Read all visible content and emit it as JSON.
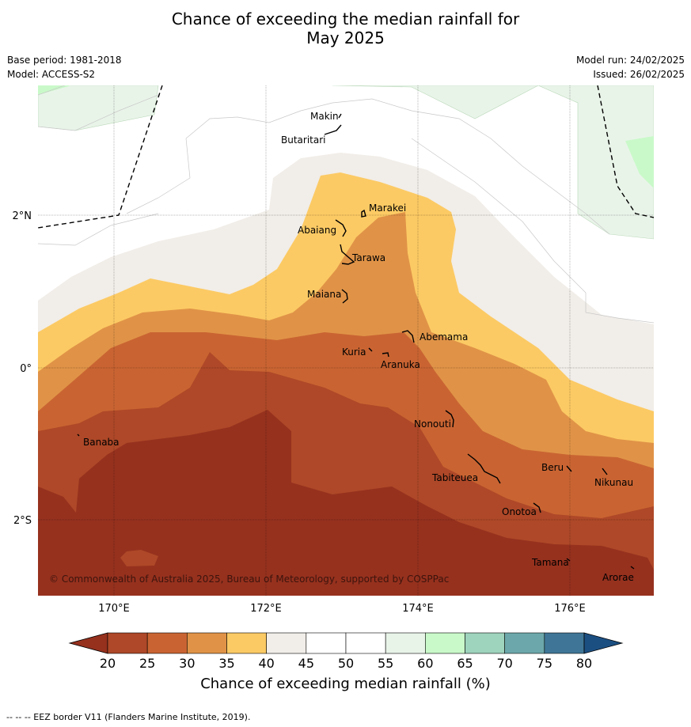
{
  "title_line1": "Chance of exceeding the median rainfall for",
  "title_line2": "May 2025",
  "base_period": "Base period: 1981-2018",
  "model": "Model: ACCESS-S2",
  "model_run": "Model run: 24/02/2025",
  "issued": "Issued: 26/02/2025",
  "copyright": "© Commonwealth of Australia 2025, Bureau of Meteorology, supported by COSPPac",
  "axes": {
    "lon_labels": [
      "170°E",
      "172°E",
      "174°E",
      "176°E"
    ],
    "lat_labels": [
      "2°N",
      "0°",
      "2°S"
    ]
  },
  "places": [
    "Makin",
    "Butaritari",
    "Marakei",
    "Abaiang",
    "Tarawa",
    "Maiana",
    "Abemama",
    "Kuria",
    "Aranuka",
    "Nonouti",
    "Banaba",
    "Tabiteuea",
    "Beru",
    "Nikunau",
    "Onotoa",
    "Tamana",
    "Arorae"
  ],
  "colorbar": {
    "title": "Chance of exceeding median rainfall (%)",
    "ticks": [
      "20",
      "25",
      "30",
      "35",
      "40",
      "45",
      "50",
      "55",
      "60",
      "65",
      "70",
      "75",
      "80"
    ],
    "below_color": "#96311e",
    "above_color": "#1b4f82",
    "colors": [
      "#ae4828",
      "#c96432",
      "#e09347",
      "#fcca64",
      "#f1ede8",
      "#ffffff",
      "#ffffff",
      "#e9f4e9",
      "#c9f9c9",
      "#9ed3bd",
      "#6ca8ab",
      "#3f7697"
    ]
  },
  "footnote": "-- -- -- EEZ border V11 (Flanders Marine Institute, 2019)."
}
